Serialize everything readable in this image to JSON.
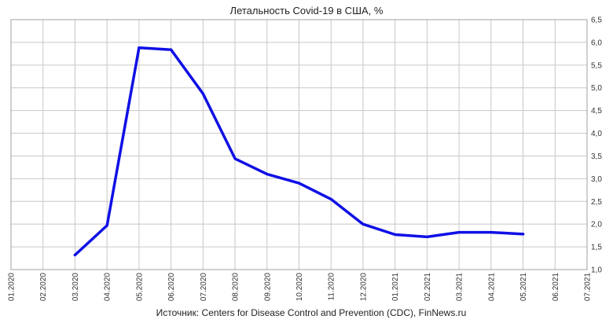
{
  "chart_data": {
    "type": "line",
    "title": "Летальность Covid-19 в США, %",
    "xlabel": "",
    "ylabel": "",
    "source": "Источник: Centers for Disease Control and Prevention (CDC), FinNews.ru",
    "categories": [
      "01.2020",
      "02.2020",
      "03.2020",
      "04.2020",
      "05.2020",
      "06.2020",
      "07.2020",
      "08.2020",
      "09.2020",
      "10.2020",
      "11.2020",
      "12.2020",
      "01.2021",
      "02.2021",
      "03.2021",
      "04.2021",
      "05.2021",
      "06.2021",
      "07.2021"
    ],
    "y_ticks": [
      "1,0",
      "1,5",
      "2,0",
      "2,5",
      "3,0",
      "3,5",
      "4,0",
      "4,5",
      "5,0",
      "5,5",
      "6,0",
      "6,5"
    ],
    "ylim": [
      1.0,
      6.5
    ],
    "grid": true,
    "y_axis_side": "right",
    "legend": "none",
    "series": [
      {
        "color": "#1010e6",
        "values": [
          null,
          null,
          1.32,
          1.97,
          5.88,
          5.84,
          4.87,
          3.44,
          3.1,
          2.9,
          2.55,
          2.0,
          1.77,
          1.72,
          1.82,
          1.82,
          1.78,
          null,
          null
        ]
      }
    ]
  }
}
